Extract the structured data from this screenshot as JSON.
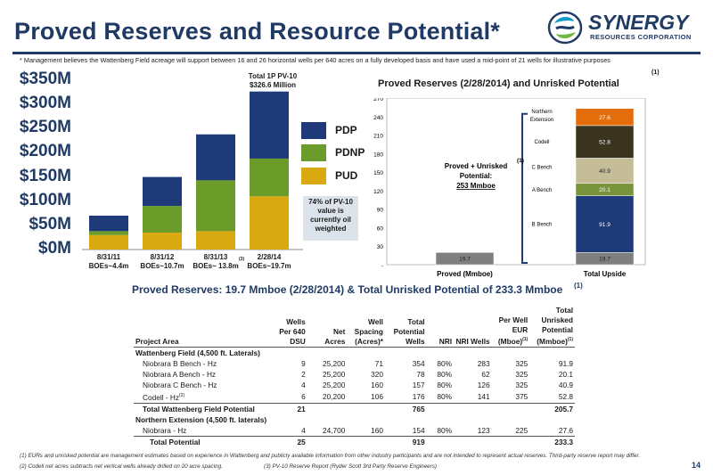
{
  "header": {
    "title": "Proved Reserves and Resource Potential*",
    "logo_name": "SYNERGY",
    "logo_sub": "RESOURCES CORPORATION",
    "top_footnote": "* Management believes the Wattenberg Field acreage will support between 16 and 26 horizontal wells per 640 acres on a fully developed basis and have used a mid-point of 21 wells for illustrative purposes"
  },
  "chart_data": [
    {
      "type": "bar",
      "stacked": true,
      "categories": [
        "8/31/11",
        "8/31/12",
        "8/31/13",
        "2/28/14"
      ],
      "category_sublabels": [
        "BOEs~4.4m",
        "BOEs~10.7m",
        "BOEs~ 13.8m",
        "BOEs~19.7m"
      ],
      "category_sup": [
        "",
        "",
        "(3)",
        ""
      ],
      "yticks": [
        "$0M",
        "$50M",
        "$100M",
        "$150M",
        "$200M",
        "$250M",
        "$300M",
        "$350M"
      ],
      "ylim": [
        0,
        350
      ],
      "series": [
        {
          "name": "PUD",
          "color": "#d9a912",
          "values": [
            30,
            35,
            38,
            110
          ]
        },
        {
          "name": "PDNP",
          "color": "#6b9c2a",
          "values": [
            8,
            55,
            105,
            78
          ]
        },
        {
          "name": "PDP",
          "color": "#1f3a78",
          "values": [
            32,
            60,
            95,
            138.6
          ]
        }
      ],
      "legend_order": [
        "PDP",
        "PDNP",
        "PUD"
      ],
      "legend_position": "right",
      "annotation_total_line1": "Total 1P PV-10",
      "annotation_total_line2": "$326.6 Million",
      "note_line1": "74% of PV-10",
      "note_line2": "value is",
      "note_line3": "currently oil",
      "note_line4": "weighted"
    },
    {
      "type": "bar",
      "stacked": true,
      "title": "Proved Reserves (2/28/2014) and Unrisked Potential",
      "title_sup": "(1)",
      "categories": [
        "Proved  (Mmboe)",
        "Total Upside"
      ],
      "ylim": [
        0,
        270
      ],
      "yticks": [
        "-",
        "30",
        "60",
        "90",
        "120",
        "150",
        "180",
        "210",
        "240",
        "270"
      ],
      "series": [
        {
          "name": "Proved",
          "color": "#7f7f7f",
          "values": [
            19.7,
            19.7
          ]
        },
        {
          "name": "B Bench",
          "color": "#1f3a78",
          "values": [
            0,
            91.9
          ]
        },
        {
          "name": "A Bench",
          "color": "#77933c",
          "values": [
            0,
            20.1
          ]
        },
        {
          "name": "C Bench",
          "color": "#c4bd97",
          "values": [
            0,
            40.9
          ]
        },
        {
          "name": "Codell",
          "color": "#3b3520",
          "values": [
            0,
            52.8
          ]
        },
        {
          "name": "Northern Extension",
          "color": "#e46c0a",
          "values": [
            0,
            27.6
          ]
        }
      ],
      "labels": {
        "proved": "19.7",
        "b": "91.9",
        "a": "20.1",
        "c": "40.9",
        "codell": "52.8",
        "north": "27.6",
        "upside_base": "19.7"
      },
      "segment_names": {
        "north1": "Northern",
        "north2": "Extension",
        "codell": "Codell",
        "c": "C Bench",
        "a": "A Bench",
        "b": "B Bench"
      },
      "callout_line1": "Proved + Unrisked",
      "callout_sup": "(1)",
      "callout_line2": "Potential:",
      "callout_line3": "253 Mmboe"
    }
  ],
  "table": {
    "title": "Proved Reserves: 19.7 Mmboe (2/28/2014) & Total Unrisked Potential of 233.3 Mmboe",
    "title_sup": "(1)",
    "headers": {
      "area": "Project Area",
      "wells_l1": "Wells",
      "wells_l2": "Per 640",
      "wells_l3": "DSU",
      "acres_l1": "Net",
      "acres_l2": "Acres",
      "spacing_l1": "Well",
      "spacing_l2": "Spacing",
      "spacing_l3": "(Acres)*",
      "potential_l1": "Total",
      "potential_l2": "Potential",
      "potential_l3": "Wells",
      "nri": "NRI",
      "nriwells": "NRI Wells",
      "eur_l1": "Per Well",
      "eur_l2": "EUR",
      "eur_l3": "(Mboe)",
      "eur_sup": "(1)",
      "total_l1": "Total",
      "total_l2": "Unrisked",
      "total_l3": "Potential",
      "total_l4": "(Mmboe)",
      "total_sup": "(1)"
    },
    "section1": "Wattenberg Field (4,500 ft. Laterals)",
    "rows1": [
      {
        "area": "Niobrara B Bench - Hz",
        "wells": "9",
        "acres": "25,200",
        "spacing": "71",
        "potential": "354",
        "nri": "80%",
        "nriwells": "283",
        "eur": "325",
        "total": "91.9"
      },
      {
        "area": "Niobrara A Bench - Hz",
        "wells": "2",
        "acres": "25,200",
        "spacing": "320",
        "potential": "78",
        "nri": "80%",
        "nriwells": "62",
        "eur": "325",
        "total": "20.1"
      },
      {
        "area": "Niobrara C Bench - Hz",
        "wells": "4",
        "acres": "25,200",
        "spacing": "160",
        "potential": "157",
        "nri": "80%",
        "nriwells": "126",
        "eur": "325",
        "total": "40.9"
      },
      {
        "area": "Codell - Hz",
        "area_sup": "(2)",
        "wells": "6",
        "acres": "20,200",
        "spacing": "106",
        "potential": "176",
        "nri": "80%",
        "nriwells": "141",
        "eur": "375",
        "total": "52.8"
      }
    ],
    "subtotal1": {
      "area": "Total Wattenberg Field Potential",
      "wells": "21",
      "potential": "765",
      "total": "205.7"
    },
    "section2": "Northern Extension (4,500 ft. laterals)",
    "rows2": [
      {
        "area": "Niobrara - Hz",
        "wells": "4",
        "acres": "24,700",
        "spacing": "160",
        "potential": "154",
        "nri": "80%",
        "nriwells": "123",
        "eur": "225",
        "total": "27.6"
      }
    ],
    "grand_total": {
      "area": "Total Potential",
      "wells": "25",
      "potential": "919",
      "total": "233.3"
    }
  },
  "footnotes": {
    "fn1": "(1) EURs and unrisked potential are management estimates based on experience in Wattenberg and publicly available information from other industry participants  and are not intended to represent actual reserves. Third-party reserve report may differ.",
    "fn2": "(2) Codell net acres subtracts net vertical wells already drilled on 20 acre spacing.",
    "fn3": "(3)  PV-10 Reserve Report (Ryder Scott 3rd Party Reserve Engineers)",
    "page": "14"
  }
}
